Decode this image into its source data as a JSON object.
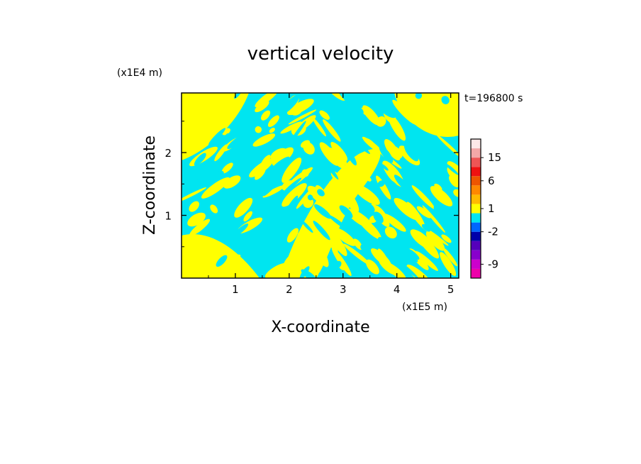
{
  "chart_data": {
    "type": "heatmap",
    "title": "vertical velocity",
    "xlabel": "X-coordinate",
    "ylabel": "Z-coordinate",
    "x_scale_label": "(x1E5 m)",
    "y_scale_label": "(x1E4 m)",
    "time_label": "t=196800 s",
    "xlim": [
      0,
      5.15
    ],
    "ylim": [
      0,
      2.95
    ],
    "x_ticks": [
      "1",
      "2",
      "3",
      "4",
      "5"
    ],
    "y_ticks": [
      "1",
      "2"
    ],
    "field_note": "filled contour field dominated by two bands: small positive (yellow) and small negative (cyan) vertical velocity",
    "colorbar": {
      "levels": [
        {
          "color": "#ee00aa"
        },
        {
          "color": "#cc00cc"
        },
        {
          "color": "#8800cc"
        },
        {
          "color": "#5500bb"
        },
        {
          "color": "#0000aa"
        },
        {
          "color": "#0066ff"
        },
        {
          "color": "#00e5f0"
        },
        {
          "color": "#ffff00"
        },
        {
          "color": "#ffbb00"
        },
        {
          "color": "#ff8800"
        },
        {
          "color": "#ee5500"
        },
        {
          "color": "#ee1111"
        },
        {
          "color": "#ee5555"
        },
        {
          "color": "#f3a8a8"
        },
        {
          "color": "#fde8e8"
        }
      ],
      "labels": [
        {
          "text": "-9",
          "level_index": 1.5
        },
        {
          "text": "-2",
          "level_index": 5.0
        },
        {
          "text": "1",
          "level_index": 7.5
        },
        {
          "text": "6",
          "level_index": 10.5
        },
        {
          "text": "15",
          "level_index": 13.0
        }
      ]
    },
    "colors": {
      "positive": "#ffff00",
      "negative": "#00e5f0"
    }
  }
}
